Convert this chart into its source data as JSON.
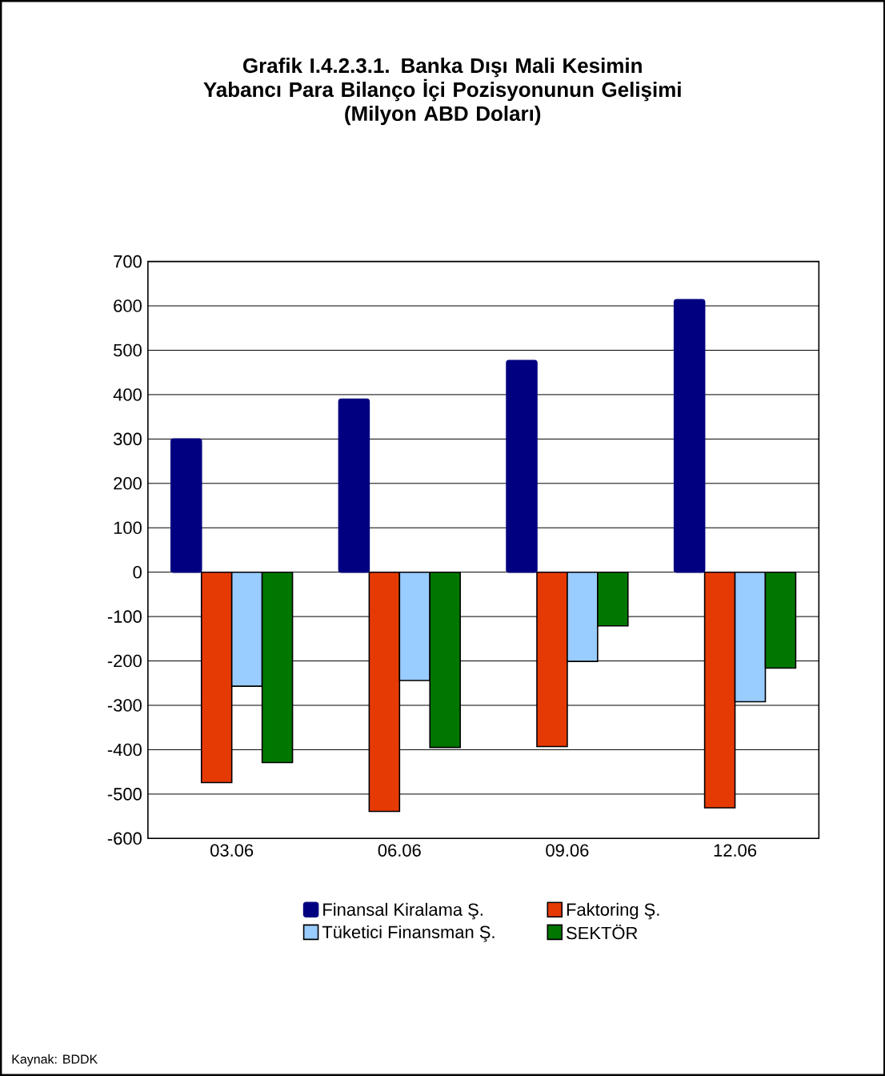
{
  "chart_data": {
    "type": "bar",
    "title": "Grafik I.4.2.3.1. Banka Dışı Mali Kesimin Yabancı Para Bilanço İçi Pozisyonunun Gelişimi",
    "subtitle": "(Milyon ABD Doları)",
    "categories": [
      "03.06",
      "06.06",
      "09.06",
      "12.06"
    ],
    "series": [
      {
        "name": "Finansal Kiralama Ş.",
        "color": "#000080",
        "values": [
          300,
          390,
          477,
          614
        ]
      },
      {
        "name": "Faktoring Ş.",
        "color": "#e63a05",
        "values": [
          -474,
          -539,
          -393,
          -531
        ]
      },
      {
        "name": "Tüketici Finansman Ş.",
        "color": "#99ccff",
        "values": [
          -257,
          -244,
          -201,
          -292
        ]
      },
      {
        "name": "SEKTÖR",
        "color": "#007700",
        "values": [
          -429,
          -395,
          -121,
          -216
        ]
      }
    ],
    "ylim": [
      -600,
      700
    ],
    "yticks": [
      -600,
      -500,
      -400,
      -300,
      -200,
      -100,
      0,
      100,
      200,
      300,
      400,
      500,
      600,
      700
    ],
    "grid": "y",
    "legend": "bottom",
    "annotations": [
      "Kaynak: BDDK"
    ]
  }
}
